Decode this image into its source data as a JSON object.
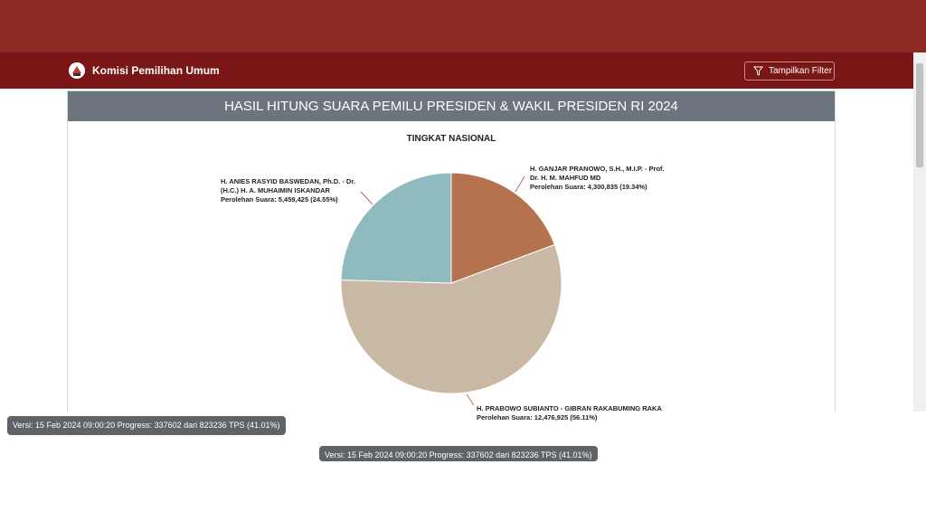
{
  "header": {
    "brand": "Komisi Pemilihan Umum",
    "filter_button": "Tampilkan Filter"
  },
  "chart_data": {
    "type": "pie",
    "title": "HASIL HITUNG SUARA PEMILU PRESIDEN & WAKIL PRESIDEN RI 2024",
    "subtitle": "TINGKAT NASIONAL",
    "categories": [
      "H. GANJAR PRANOWO, S.H., M.I.P. - Prof. Dr. H. M. MAHFUD MD",
      "H. PRABOWO SUBIANTO - GIBRAN RAKABUMING RAKA",
      "H. ANIES RASYID BASWEDAN, Ph.D. - Dr. (H.C.) H. A. MUHAIMIN ISKANDAR"
    ],
    "values": [
      4300835,
      12476925,
      5459425
    ],
    "value_labels": [
      "Perolehan Suara: 4,300,835 (19.34%)",
      "Perolehan Suara: 12,476,925 (56.11%)",
      "Perolehan Suara: 5,459,425 (24.55%)"
    ],
    "colors": [
      "#b5724f",
      "#c9b8a3",
      "#8fbac0"
    ]
  },
  "footer": {
    "version": "Versi: 15 Feb 2024 09:00:20 Progress: 337602 dari 823236 TPS (41.01%)"
  }
}
